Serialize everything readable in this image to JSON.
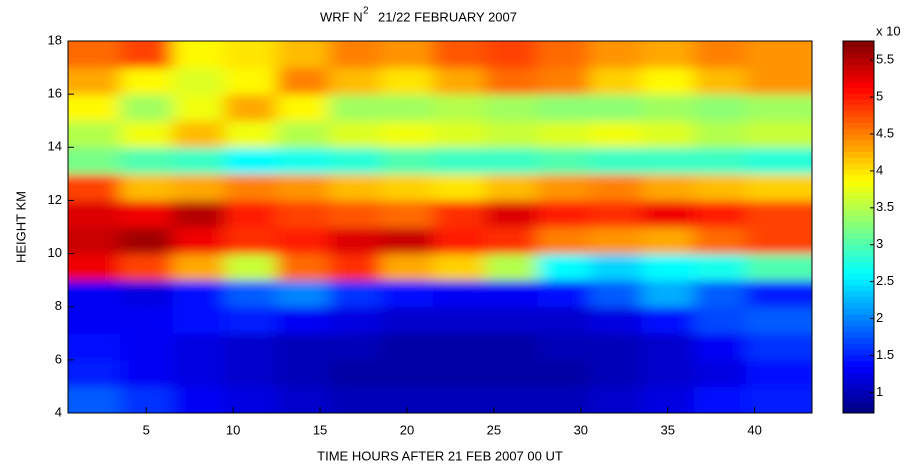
{
  "chart_data": {
    "type": "heatmap",
    "title_parts": [
      "WRF N",
      "2",
      "21/22 FEBRUARY 2007"
    ],
    "xlabel": "TIME   HOURS AFTER 21 FEB 2007 00 UT",
    "ylabel": "HEIGHT KM",
    "colorbar_label": "x 10",
    "x": [
      2,
      5,
      8,
      11,
      14,
      17,
      20,
      23,
      26,
      29,
      32,
      35,
      38,
      41
    ],
    "y": [
      4.5,
      5.5,
      6.5,
      7.5,
      8.5,
      9.5,
      10.5,
      11.5,
      12.5,
      13.5,
      14.5,
      15.5,
      16.5,
      17.5
    ],
    "z": [
      [
        1.8,
        1.6,
        1.3,
        1.2,
        1.1,
        1.0,
        1.0,
        1.0,
        1.0,
        1.0,
        1.1,
        1.2,
        1.4,
        1.5
      ],
      [
        1.5,
        1.3,
        1.2,
        1.1,
        1.0,
        0.9,
        0.9,
        0.9,
        0.9,
        0.9,
        1.0,
        1.1,
        1.2,
        1.4
      ],
      [
        1.4,
        1.3,
        1.2,
        1.1,
        1.0,
        1.0,
        0.9,
        0.9,
        0.9,
        1.0,
        1.0,
        1.1,
        1.3,
        1.6
      ],
      [
        1.3,
        1.3,
        1.4,
        1.5,
        1.3,
        1.2,
        1.1,
        1.1,
        1.1,
        1.1,
        1.2,
        1.4,
        1.7,
        1.8
      ],
      [
        1.3,
        1.2,
        1.4,
        1.8,
        2.0,
        1.6,
        1.4,
        1.3,
        1.3,
        1.4,
        1.8,
        2.2,
        1.8,
        1.5
      ],
      [
        5.2,
        4.8,
        4.3,
        3.6,
        4.6,
        4.9,
        4.3,
        4.1,
        3.5,
        2.6,
        2.4,
        2.6,
        2.7,
        3.0
      ],
      [
        5.4,
        5.6,
        5.2,
        4.9,
        5.0,
        5.3,
        5.4,
        5.0,
        4.9,
        4.5,
        4.4,
        4.3,
        4.6,
        4.8
      ],
      [
        5.3,
        5.2,
        5.5,
        5.0,
        4.8,
        4.7,
        4.6,
        4.9,
        5.3,
        5.0,
        4.9,
        5.2,
        5.0,
        4.8
      ],
      [
        4.8,
        4.2,
        4.3,
        4.5,
        4.4,
        4.2,
        4.1,
        4.0,
        4.2,
        4.4,
        4.5,
        4.3,
        4.2,
        4.1
      ],
      [
        3.2,
        3.0,
        2.9,
        2.6,
        2.7,
        2.8,
        3.0,
        2.9,
        2.9,
        3.0,
        2.9,
        2.9,
        2.9,
        2.8
      ],
      [
        3.5,
        3.8,
        4.2,
        3.8,
        3.5,
        3.7,
        3.8,
        3.7,
        3.6,
        3.7,
        3.8,
        3.7,
        3.5,
        3.6
      ],
      [
        3.9,
        3.4,
        3.8,
        4.3,
        3.9,
        3.4,
        3.4,
        3.5,
        3.4,
        3.3,
        3.3,
        3.4,
        3.3,
        3.4
      ],
      [
        4.3,
        3.9,
        3.7,
        3.9,
        4.5,
        4.2,
        4.0,
        4.3,
        4.6,
        4.5,
        4.1,
        3.9,
        4.2,
        4.4
      ],
      [
        4.6,
        4.8,
        3.9,
        4.0,
        4.2,
        4.5,
        4.4,
        4.7,
        4.8,
        4.6,
        4.4,
        4.3,
        4.5,
        4.4
      ]
    ],
    "colormap": "jet",
    "xlim": [
      0.5,
      43.3
    ],
    "ylim": [
      4,
      18
    ],
    "xticks": [
      5,
      10,
      15,
      20,
      25,
      30,
      35,
      40
    ],
    "yticks": [
      4,
      6,
      8,
      10,
      12,
      14,
      16,
      18
    ],
    "clim": [
      0.72,
      5.76
    ],
    "cticks": [
      1,
      1.5,
      2,
      2.5,
      3,
      3.5,
      4,
      4.5,
      5,
      5.5
    ]
  }
}
